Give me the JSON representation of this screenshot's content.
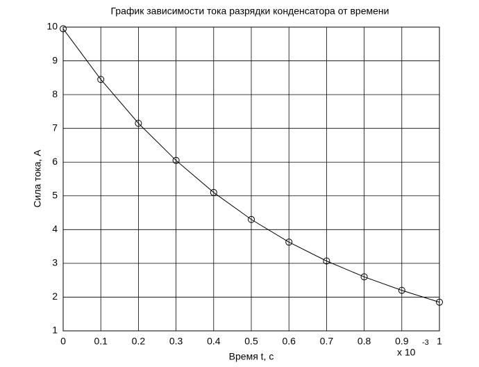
{
  "chart_data": {
    "type": "line",
    "title": "График зависимости тока разрядки конденсатора от времени",
    "x_label": "Время t, с",
    "y_label": "Сила тока, А",
    "x_scale_label": "x 10",
    "x_scale_exponent": "-3",
    "x": [
      0,
      0.1,
      0.2,
      0.3,
      0.4,
      0.5,
      0.6,
      0.7,
      0.8,
      0.9,
      1
    ],
    "series": [
      {
        "color": "#000000",
        "marker": "circle",
        "values": [
          9.95,
          8.45,
          7.15,
          6.05,
          5.1,
          4.3,
          3.63,
          3.07,
          2.6,
          2.2,
          1.85
        ]
      }
    ],
    "xlim": [
      0,
      1
    ],
    "xticks": [
      0,
      0.1,
      0.2,
      0.3,
      0.4,
      0.5,
      0.6,
      0.7,
      0.8,
      0.9,
      1
    ],
    "ylim": [
      1,
      10
    ],
    "yticks": [
      1,
      2,
      3,
      4,
      5,
      6,
      7,
      8,
      9,
      10
    ],
    "grid": true
  }
}
